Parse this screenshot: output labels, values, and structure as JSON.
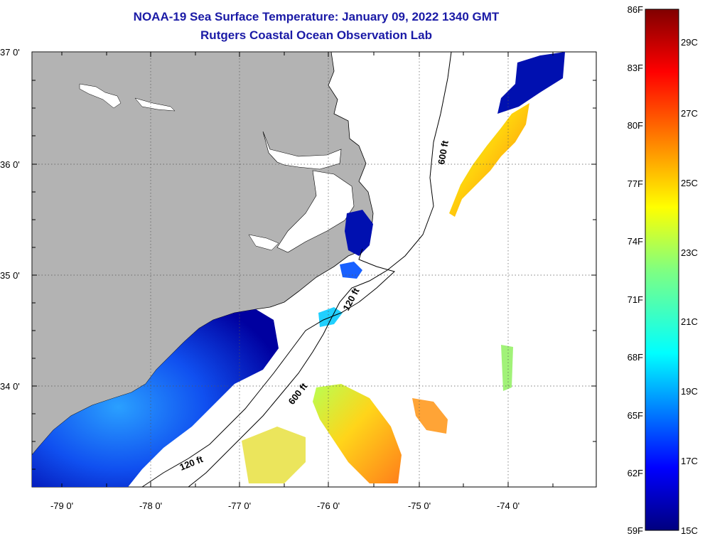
{
  "title_line1": "NOAA-19 Sea Surface Temperature:  January 09, 2022 1340 GMT",
  "title_line2": "Rutgers Coastal Ocean Observation Lab",
  "lat_labels": [
    "37 0'",
    "36 0'",
    "35 0'",
    "34 0'"
  ],
  "lon_labels": [
    "-79 0'",
    "-78 0'",
    "-77 0'",
    "-76 0'",
    "-75 0'",
    "-74 0'"
  ],
  "contour_labels": [
    "600 ft",
    "120 ft",
    "600 ft",
    "120 ft"
  ],
  "colorbar": {
    "fahrenheit": [
      "86F",
      "83F",
      "80F",
      "77F",
      "74F",
      "71F",
      "68F",
      "65F",
      "62F",
      "59F"
    ],
    "celsius": [
      "29C",
      "27C",
      "25C",
      "23C",
      "21C",
      "19C",
      "17C",
      "15C"
    ]
  },
  "colors": {
    "land": "#b3b3b3",
    "title": "#1a1aa6"
  }
}
